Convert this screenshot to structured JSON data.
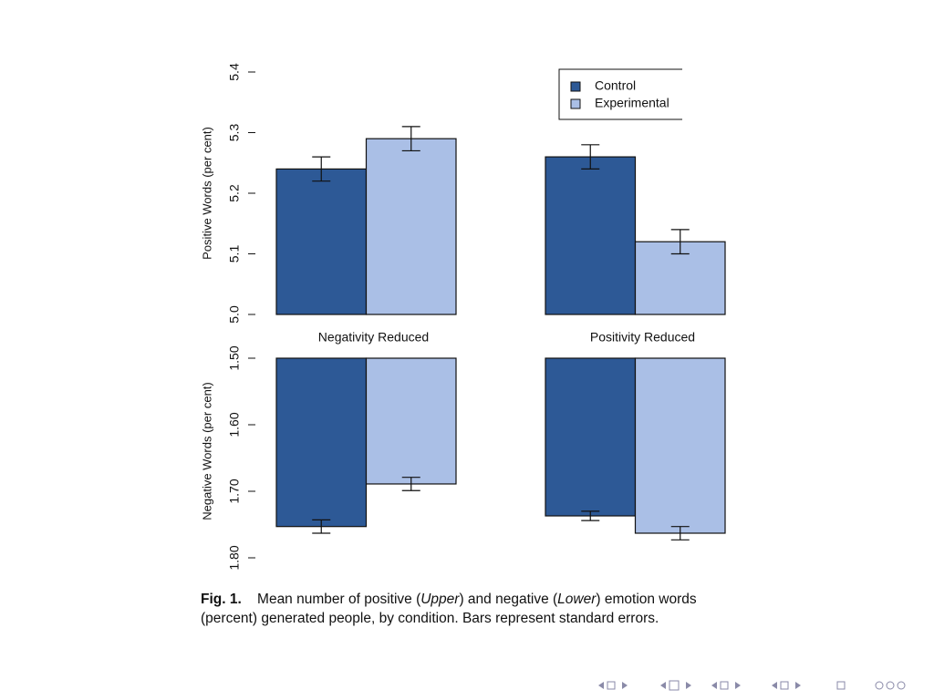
{
  "chart_data": [
    {
      "type": "bar",
      "y_label": "Positive Words (per cent)",
      "categories": [
        "Negativity Reduced",
        "Positivity Reduced"
      ],
      "series": [
        {
          "name": "Control",
          "color": "#2d5996",
          "values": [
            5.24,
            5.26
          ],
          "errors": [
            0.02,
            0.02
          ]
        },
        {
          "name": "Experimental",
          "color": "#aabfe6",
          "values": [
            5.29,
            5.12
          ],
          "errors": [
            0.02,
            0.02
          ]
        }
      ],
      "ylim": [
        5.0,
        5.4
      ],
      "yticks": [
        {
          "value": 5.0,
          "label": "5.0"
        },
        5.1,
        5.2,
        5.3,
        5.4
      ],
      "legend": "top-right"
    },
    {
      "type": "bar",
      "y_label": "Negative Words (per cent)",
      "inverted": true,
      "series": [
        {
          "color": "#2d5996",
          "values": [
            1.753,
            1.737
          ],
          "errors": [
            0.01,
            0.007
          ]
        },
        {
          "color": "#aabfe6",
          "values": [
            1.689,
            1.763
          ],
          "errors": [
            0.01,
            0.01
          ]
        }
      ],
      "ylim": [
        1.5,
        1.8
      ],
      "yticks": [
        {
          "value": 1.5,
          "label": "1.50"
        },
        {
          "value": 1.6,
          "label": "1.60"
        },
        {
          "value": 1.7,
          "label": "1.70"
        },
        {
          "value": 1.8,
          "label": "1.80"
        }
      ]
    }
  ],
  "caption": {
    "label": "Fig. 1.",
    "parts": [
      "Mean number of positive (",
      "Upper",
      ") and negative (",
      "Lower",
      ") emotion words (percent) generated people, by condition. Bars represent standard errors."
    ]
  }
}
